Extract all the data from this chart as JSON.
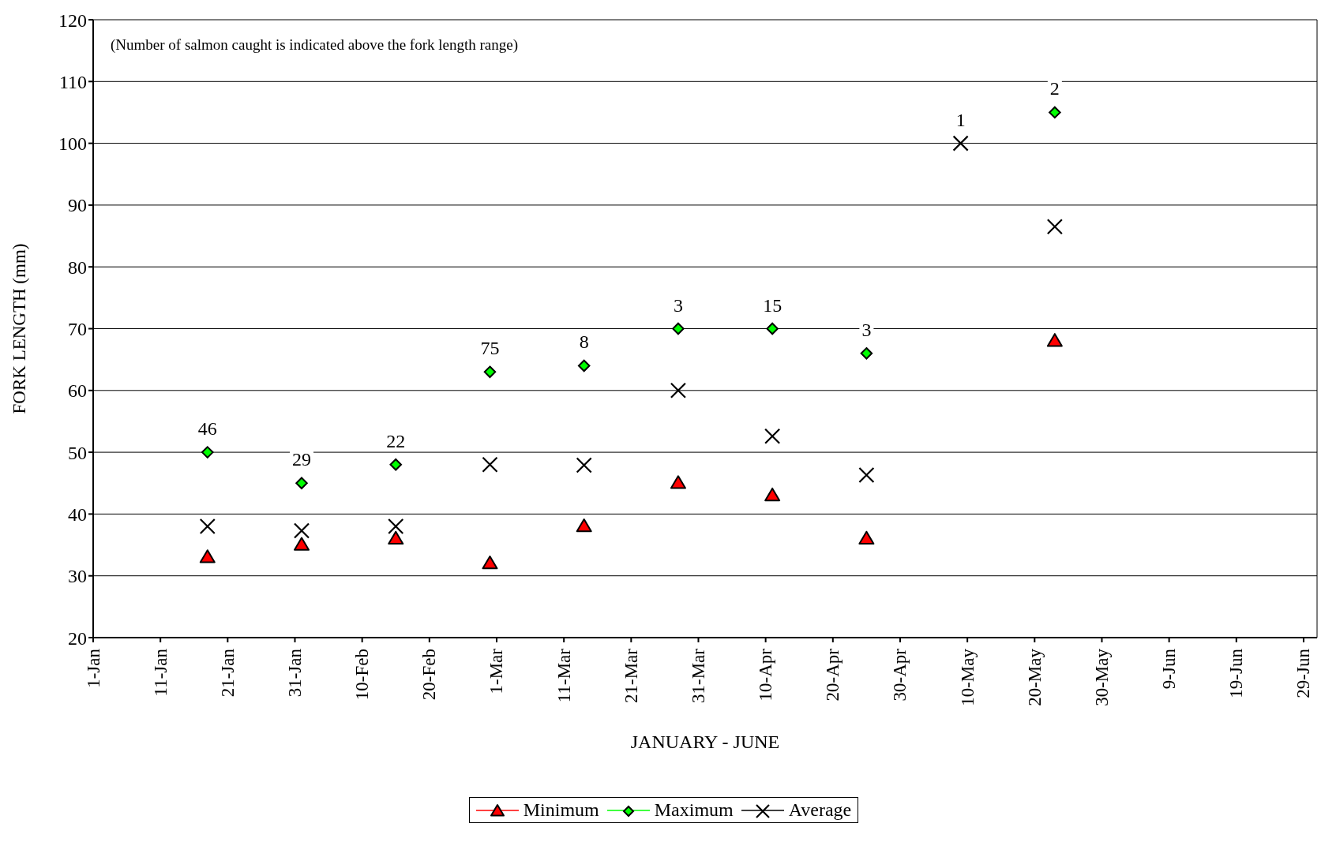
{
  "chart_data": {
    "type": "scatter",
    "xlabel": "JANUARY - JUNE",
    "ylabel": "FORK LENGTH (mm)",
    "annotations": [
      "(Number of salmon caught is indicated above the fork length range)",
      {
        "text": "46",
        "x": "--01-18",
        "y": 50
      },
      {
        "text": "29",
        "x": "--02-01",
        "y": 45
      },
      {
        "text": "22",
        "x": "--02-15",
        "y": 48
      },
      {
        "text": "75",
        "x": "--02-29",
        "y": 63
      },
      {
        "text": "8",
        "x": "--03-14",
        "y": 64
      },
      {
        "text": "3",
        "x": "--03-28",
        "y": 70
      },
      {
        "text": "15",
        "x": "--04-11",
        "y": 70
      },
      {
        "text": "3",
        "x": "--04-25",
        "y": 66
      },
      {
        "text": "1",
        "x": "--05-09",
        "y": 100
      },
      {
        "text": "2",
        "x": "--05-23",
        "y": 105
      }
    ],
    "x": [
      "--01-18",
      "--02-01",
      "--02-15",
      "--02-29",
      "--03-14",
      "--03-28",
      "--04-11",
      "--04-25",
      "--05-09",
      "--05-23"
    ],
    "series": [
      {
        "name": "Minimum",
        "color": "#ff0000",
        "marker": "triangle",
        "values": [
          33,
          35,
          36,
          32,
          38,
          45,
          43,
          36,
          null,
          68
        ]
      },
      {
        "name": "Maximum",
        "color": "#00ff00",
        "marker": "diamond",
        "values": [
          50,
          45,
          48,
          63,
          64,
          70,
          70,
          66,
          null,
          105
        ]
      },
      {
        "name": "Average",
        "color": "#000000",
        "marker": "cross",
        "values": [
          38,
          37.3,
          38,
          48,
          47.9,
          60,
          52.6,
          46.3,
          100,
          86.5
        ]
      }
    ],
    "xlim": [
      "--01-01",
      "--07-01"
    ],
    "xticks": [
      {
        "value": "--01-01",
        "label": "1-Jan"
      },
      {
        "value": "--01-11",
        "label": "11-Jan"
      },
      {
        "value": "--01-21",
        "label": "21-Jan"
      },
      {
        "value": "--01-31",
        "label": "31-Jan"
      },
      {
        "value": "--02-10",
        "label": "10-Feb"
      },
      {
        "value": "--02-20",
        "label": "20-Feb"
      },
      {
        "value": "--03-01",
        "label": "1-Mar"
      },
      {
        "value": "--03-11",
        "label": "11-Mar"
      },
      {
        "value": "--03-21",
        "label": "21-Mar"
      },
      {
        "value": "--03-31",
        "label": "31-Mar"
      },
      {
        "value": "--04-10",
        "label": "10-Apr"
      },
      {
        "value": "--04-20",
        "label": "20-Apr"
      },
      {
        "value": "--04-30",
        "label": "30-Apr"
      },
      {
        "value": "--05-10",
        "label": "10-May"
      },
      {
        "value": "--05-20",
        "label": "20-May"
      },
      {
        "value": "--05-30",
        "label": "30-May"
      },
      {
        "value": "--06-09",
        "label": "9-Jun"
      },
      {
        "value": "--06-19",
        "label": "19-Jun"
      },
      {
        "value": "--06-29",
        "label": "29-Jun"
      }
    ],
    "ylim": [
      20,
      120
    ],
    "yticks": [
      20,
      30,
      40,
      50,
      60,
      70,
      80,
      90,
      100,
      110,
      120
    ],
    "grid": "y",
    "legend": "bottom"
  }
}
